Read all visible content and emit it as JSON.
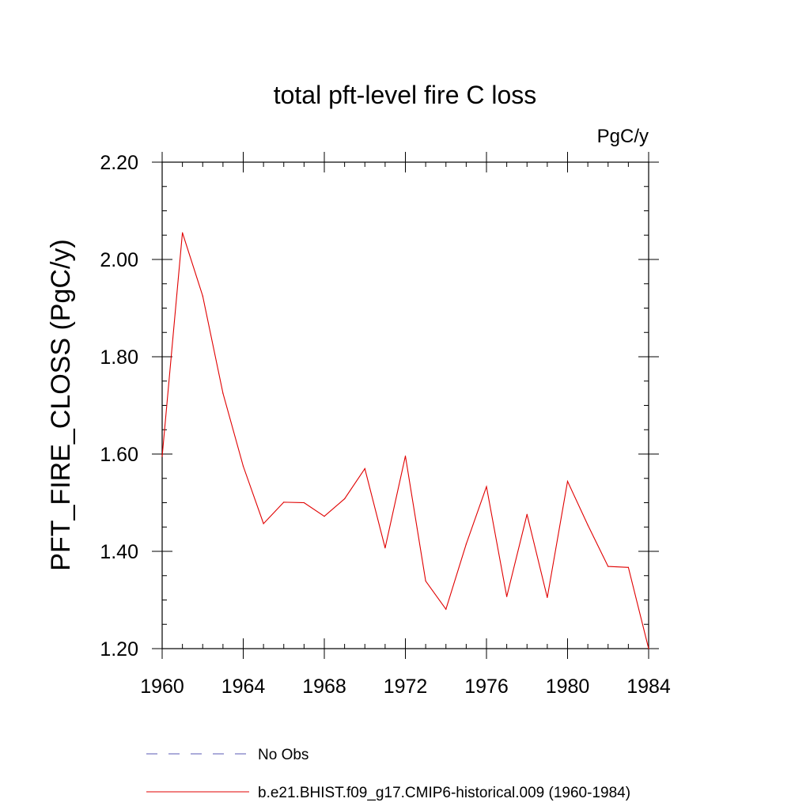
{
  "chart_data": {
    "type": "line",
    "title": "total pft-level fire C loss",
    "units": "PgC/y",
    "xlabel": "",
    "ylabel": "PFT_FIRE_CLOSS  (PgC/y)",
    "xlim": [
      1960,
      1984
    ],
    "ylim": [
      1.2,
      2.2
    ],
    "x_ticks": [
      1960,
      1964,
      1968,
      1972,
      1976,
      1980,
      1984
    ],
    "x_tick_labels": [
      "1960",
      "1964",
      "1968",
      "1972",
      "1976",
      "1980",
      "1984"
    ],
    "y_ticks": [
      1.2,
      1.4,
      1.6,
      1.8,
      2.0,
      2.2
    ],
    "y_tick_labels": [
      "1.20",
      "1.40",
      "1.60",
      "1.80",
      "2.00",
      "2.20"
    ],
    "grid": false,
    "legend_position": "bottom",
    "series": [
      {
        "name": "No Obs",
        "color": "#5a5ab4",
        "dash": "dashed",
        "x": [],
        "values": []
      },
      {
        "name": "b.e21.BHIST.f09_g17.CMIP6-historical.009 (1960-1984)",
        "color": "#e00000",
        "dash": "solid",
        "x": [
          1960,
          1961,
          1962,
          1963,
          1964,
          1965,
          1966,
          1967,
          1968,
          1969,
          1970,
          1971,
          1972,
          1973,
          1974,
          1975,
          1976,
          1977,
          1978,
          1979,
          1980,
          1981,
          1982,
          1983,
          1984
        ],
        "values": [
          1.595,
          2.055,
          1.925,
          1.725,
          1.575,
          1.457,
          1.501,
          1.5,
          1.472,
          1.508,
          1.57,
          1.407,
          1.596,
          1.339,
          1.281,
          1.415,
          1.533,
          1.307,
          1.476,
          1.305,
          1.544,
          1.454,
          1.369,
          1.367,
          1.2
        ]
      }
    ]
  }
}
